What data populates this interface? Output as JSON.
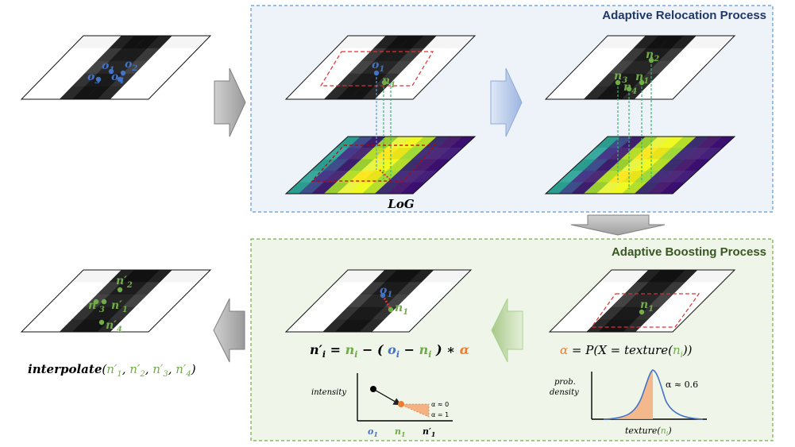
{
  "panels": {
    "relocation_title": "Adaptive Relocation Process",
    "boosting_title": "Adaptive Boosting Process",
    "relocation_color": "#1f3864",
    "boosting_color": "#548235"
  },
  "input_grid": {
    "labels": [
      {
        "key": "o1",
        "base": "o",
        "sub": "1"
      },
      {
        "key": "o2",
        "base": "o",
        "sub": "2"
      },
      {
        "key": "o3",
        "base": "o",
        "sub": "3"
      },
      {
        "key": "o4",
        "base": "o",
        "sub": "4"
      }
    ]
  },
  "relocation": {
    "step1_labels": {
      "o1": {
        "base": "o",
        "sub": "1"
      },
      "n1": {
        "base": "n",
        "sub": "1"
      }
    },
    "step2_labels": {
      "n1": {
        "base": "n",
        "sub": "1"
      },
      "n2": {
        "base": "n",
        "sub": "2"
      },
      "n3": {
        "base": "n",
        "sub": "3"
      },
      "n4": {
        "base": "n",
        "sub": "4"
      }
    },
    "log_label": "LoG"
  },
  "boosting": {
    "texture_labels": {
      "n1": {
        "base": "n",
        "sub": "1"
      }
    },
    "shift_labels": {
      "o1": {
        "base": "o",
        "sub": "1"
      },
      "n1": {
        "base": "n",
        "sub": "1"
      }
    },
    "formula_update": "n′i = ni − (oi − ni) ∗ α",
    "formula_alpha": "α = P(X = texture(ni))",
    "intensity_plot": {
      "ylabel": "intensity",
      "x_ticks": [
        "o1",
        "n1",
        "n′1"
      ],
      "alpha0": "α ≈ 0",
      "alpha1": "α = 1"
    },
    "density_plot": {
      "ylabel_line1": "prob.",
      "ylabel_line2": "density",
      "xlabel": "texture(ni)",
      "alpha_value": "α ≈ 0.6"
    }
  },
  "output_grid": {
    "labels": [
      {
        "key": "n1p",
        "base": "n",
        "sub": "1"
      },
      {
        "key": "n2p",
        "base": "n",
        "sub": "2"
      },
      {
        "key": "n3p",
        "base": "n",
        "sub": "3"
      },
      {
        "key": "n4p",
        "base": "n",
        "sub": "4"
      }
    ],
    "caption_fn": "interpolate",
    "caption_args": "(n′1, n′2, n′3, n′4)"
  },
  "colors": {
    "blue": "#4472c4",
    "green": "#70ad47",
    "orange": "#ed7d31",
    "red": "#e03030",
    "relocation_bg": "#eef3fa",
    "boosting_bg": "#eff5e8"
  }
}
